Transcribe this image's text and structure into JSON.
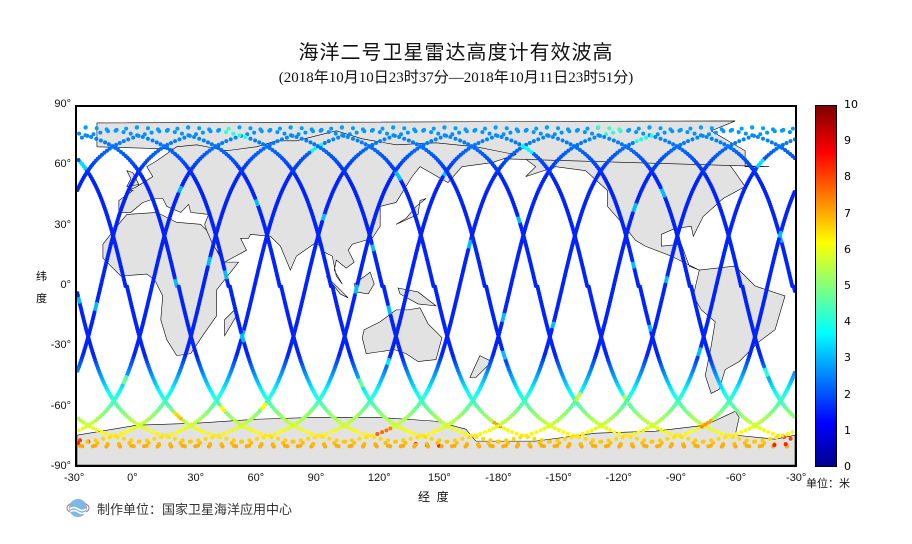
{
  "title": "海洋二号卫星雷达高度计有效波高",
  "subtitle": "(2018年10月10日23时37分—2018年10月11日23时51分)",
  "x_axis": {
    "label": "经  度",
    "ticks": [
      "-30°",
      "0°",
      "30°",
      "60°",
      "90°",
      "120°",
      "150°",
      "-180°",
      "-150°",
      "-120°",
      "-90°",
      "-60°",
      "-30°"
    ]
  },
  "y_axis": {
    "label_top": "纬",
    "label_bottom": "度",
    "ticks": [
      "90°",
      "60°",
      "30°",
      "0°",
      "-30°",
      "-60°",
      "-90°"
    ]
  },
  "colorbar": {
    "ticks": [
      "10",
      "9",
      "8",
      "7",
      "6",
      "5",
      "4",
      "3",
      "2",
      "1",
      "0"
    ],
    "unit": "单位：米",
    "range": [
      0,
      10
    ]
  },
  "footer": "制作单位：国家卫星海洋应用中心",
  "colors": {
    "land": "#e2e2e2",
    "track_low": "#1f3dff",
    "track_high": "#ff2a00"
  }
}
